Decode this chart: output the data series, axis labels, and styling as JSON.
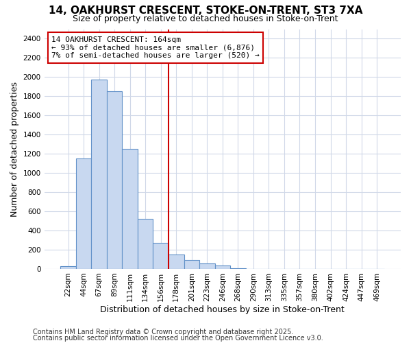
{
  "title_line1": "14, OAKHURST CRESCENT, STOKE-ON-TRENT, ST3 7XA",
  "title_line2": "Size of property relative to detached houses in Stoke-on-Trent",
  "xlabel": "Distribution of detached houses by size in Stoke-on-Trent",
  "ylabel": "Number of detached properties",
  "categories": [
    "22sqm",
    "44sqm",
    "67sqm",
    "89sqm",
    "111sqm",
    "134sqm",
    "156sqm",
    "178sqm",
    "201sqm",
    "223sqm",
    "246sqm",
    "268sqm",
    "290sqm",
    "313sqm",
    "335sqm",
    "357sqm",
    "380sqm",
    "402sqm",
    "424sqm",
    "447sqm",
    "469sqm"
  ],
  "values": [
    25,
    1150,
    1975,
    1850,
    1250,
    525,
    275,
    150,
    90,
    55,
    35,
    10,
    0,
    0,
    0,
    0,
    0,
    0,
    0,
    0,
    0
  ],
  "bar_color": "#c8d8f0",
  "bar_edge_color": "#6090c8",
  "vline_color": "#cc0000",
  "vline_x": 6.5,
  "annotation_title": "14 OAKHURST CRESCENT: 164sqm",
  "annotation_line2": "← 93% of detached houses are smaller (6,876)",
  "annotation_line3": "7% of semi-detached houses are larger (520) →",
  "annotation_box_color": "#cc0000",
  "ylim": [
    0,
    2500
  ],
  "yticks": [
    0,
    200,
    400,
    600,
    800,
    1000,
    1200,
    1400,
    1600,
    1800,
    2000,
    2200,
    2400
  ],
  "footer_line1": "Contains HM Land Registry data © Crown copyright and database right 2025.",
  "footer_line2": "Contains public sector information licensed under the Open Government Licence v3.0.",
  "background_color": "#ffffff",
  "grid_color": "#d0d8e8",
  "title_fontsize": 11,
  "subtitle_fontsize": 9,
  "axis_label_fontsize": 9,
  "tick_fontsize": 7.5,
  "footer_fontsize": 7
}
